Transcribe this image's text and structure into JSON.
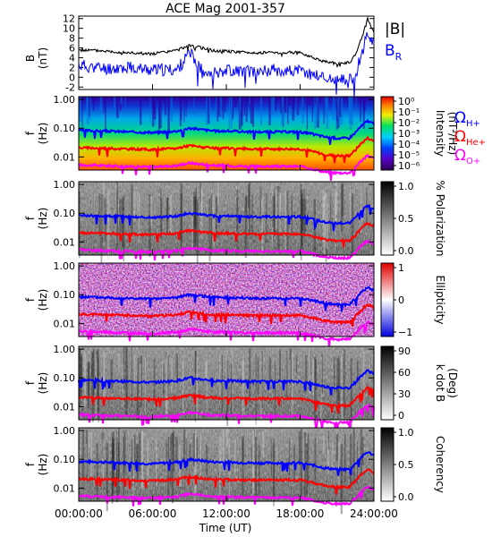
{
  "chart_data": {
    "title": "ACE Mag 2001-357",
    "xlabel": "Time (UT)",
    "xticks": [
      "00:00:00",
      "06:00:00",
      "12:00:00",
      "18:00:00",
      "24:00:00"
    ],
    "colors": {
      "btotal": "#000000",
      "br": "#0000ff",
      "h_plus": "#0000ff",
      "he_plus": "#ff0000",
      "o_plus": "#ff00ff"
    },
    "panels": [
      {
        "id": "field",
        "type": "line",
        "ylabel": [
          "B",
          "(nT)"
        ],
        "ylim": [
          -2.5,
          12.5
        ],
        "yticks": [
          "-2",
          "0",
          "2",
          "4",
          "6",
          "8",
          "10",
          "12"
        ],
        "x_hours": [
          0,
          2,
          4,
          6,
          8,
          9,
          10,
          11,
          12,
          14,
          16,
          18,
          20,
          21,
          22,
          22.5,
          23,
          23.5,
          24
        ],
        "series": [
          {
            "name": "|B|",
            "values": [
              5.6,
              5.4,
              5.0,
              4.8,
              5.5,
              6.6,
              6.0,
              5.4,
              5.3,
              5.0,
              5.1,
              5.0,
              3.2,
              2.8,
              3.0,
              4.5,
              8.0,
              12.0,
              9.0
            ]
          },
          {
            "name": "B_R",
            "values": [
              2.5,
              1.8,
              2.0,
              1.5,
              1.5,
              5.0,
              1.5,
              1.0,
              1.5,
              1.2,
              1.5,
              1.2,
              0.0,
              -0.8,
              -0.5,
              0.5,
              5.0,
              9.0,
              7.0
            ]
          }
        ]
      },
      {
        "id": "intensity",
        "type": "heatmap",
        "ylabel": [
          "f",
          "(Hz)"
        ],
        "yticks": [
          "1.00",
          "0.10",
          "0.01"
        ],
        "colorbar": {
          "label": [
            "Intensity",
            "(nT²/Hz)"
          ],
          "ticks": [
            "10⁰",
            "10⁻¹",
            "10⁻²",
            "10⁻³",
            "10⁻⁴",
            "10⁻⁵",
            "10⁻⁶"
          ],
          "scale": "rainbow"
        }
      },
      {
        "id": "polarization",
        "type": "heatmap",
        "ylabel": [
          "f",
          "(Hz)"
        ],
        "yticks": [
          "1.00",
          "0.10",
          "0.01"
        ],
        "colorbar": {
          "label": [
            "% Polarization"
          ],
          "ticks": [
            "1.0",
            "0.5",
            "0.0"
          ],
          "scale": "gray"
        }
      },
      {
        "id": "ellipticity",
        "type": "heatmap",
        "ylabel": [
          "f",
          "(Hz)"
        ],
        "yticks": [
          "1.00",
          "0.10",
          "0.01"
        ],
        "colorbar": {
          "label": [
            "Ellipticity"
          ],
          "ticks": [
            "1",
            "0",
            "−1"
          ],
          "scale": "bluewhitered"
        }
      },
      {
        "id": "kdotb",
        "type": "heatmap",
        "ylabel": [
          "f",
          "(Hz)"
        ],
        "yticks": [
          "1.00",
          "0.10",
          "0.01"
        ],
        "colorbar": {
          "label": [
            "k dot B",
            "(Deg)"
          ],
          "ticks": [
            "90",
            "60",
            "30",
            "0"
          ],
          "scale": "gray"
        }
      },
      {
        "id": "coherency",
        "type": "heatmap",
        "ylabel": [
          "f",
          "(Hz)"
        ],
        "yticks": [
          "1.00",
          "0.10",
          "0.01"
        ],
        "colorbar": {
          "label": [
            "Coherency"
          ],
          "ticks": [
            "1.0",
            "0.5",
            "0.0"
          ],
          "scale": "gray"
        }
      }
    ],
    "legend_field": [
      {
        "symbol": "|B|"
      },
      {
        "symbol": "B",
        "sub": "R"
      }
    ],
    "gyrofrequency_legend": [
      {
        "symbol": "Ω",
        "sub": "H+"
      },
      {
        "symbol": "Ω",
        "sub": "He+"
      },
      {
        "symbol": "Ω",
        "sub": "O+"
      }
    ],
    "gyrofrequencies": {
      "x_hours": [
        0,
        2,
        4,
        6,
        8,
        9,
        10,
        11,
        12,
        14,
        16,
        18,
        20,
        21,
        22,
        22.5,
        23,
        23.5,
        24
      ],
      "h_plus_hz": [
        0.085,
        0.08,
        0.075,
        0.07,
        0.08,
        0.1,
        0.09,
        0.08,
        0.08,
        0.075,
        0.075,
        0.075,
        0.05,
        0.045,
        0.045,
        0.07,
        0.12,
        0.18,
        0.14
      ],
      "he_plus_hz": [
        0.021,
        0.02,
        0.019,
        0.018,
        0.02,
        0.025,
        0.022,
        0.02,
        0.02,
        0.019,
        0.019,
        0.019,
        0.012,
        0.011,
        0.011,
        0.017,
        0.03,
        0.045,
        0.035
      ],
      "o_plus_hz": [
        0.0053,
        0.005,
        0.0047,
        0.0045,
        0.005,
        0.0062,
        0.0056,
        0.005,
        0.005,
        0.0047,
        0.0047,
        0.0047,
        0.003,
        0.0028,
        0.0028,
        0.0044,
        0.0075,
        0.011,
        0.0088
      ]
    }
  }
}
